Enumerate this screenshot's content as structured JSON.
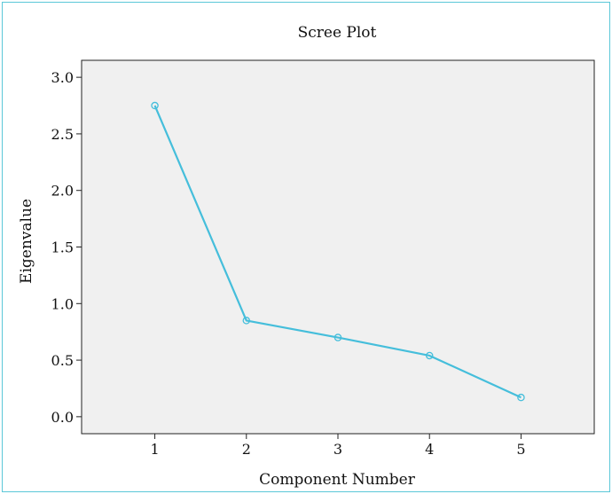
{
  "chart_data": {
    "type": "line",
    "title": "Scree Plot",
    "xlabel": "Component Number",
    "ylabel": "Eigenvalue",
    "x": [
      1,
      2,
      3,
      4,
      5
    ],
    "series": [
      {
        "values": [
          2.75,
          0.85,
          0.7,
          0.54,
          0.17
        ]
      }
    ],
    "xlim": [
      0.2,
      5.8
    ],
    "ylim": [
      -0.15,
      3.15
    ],
    "yticks": [
      "0.0",
      "0.5",
      "1.0",
      "1.5",
      "2.0",
      "2.5",
      "3.0"
    ],
    "xticks": [
      "1",
      "2",
      "3",
      "4",
      "5"
    ],
    "grid": false,
    "colors": {
      "line": "#45bedb",
      "plot_bg": "#f0f0f0",
      "border": "#5bc8d8"
    }
  }
}
